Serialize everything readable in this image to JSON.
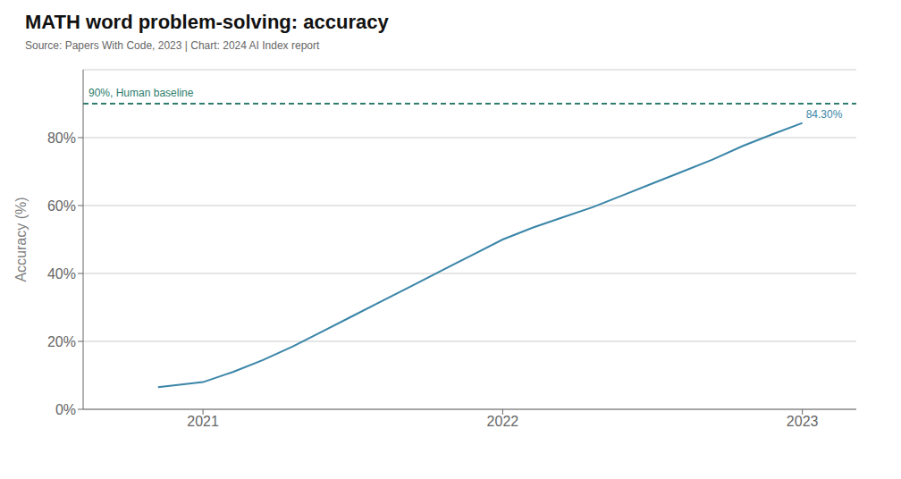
{
  "chart_data": {
    "type": "line",
    "title": "MATH word problem-solving: accuracy",
    "subtitle": "Source: Papers With Code, 2023 | Chart: 2024 AI Index report",
    "ylabel": "Accuracy (%)",
    "x": [
      2020.85,
      2021.0,
      2021.1,
      2021.2,
      2021.3,
      2021.4,
      2021.5,
      2021.6,
      2021.7,
      2021.8,
      2021.9,
      2022.0,
      2022.1,
      2022.2,
      2022.3,
      2022.4,
      2022.5,
      2022.6,
      2022.7,
      2022.8,
      2022.9,
      2023.0
    ],
    "values": [
      6.5,
      8.0,
      11.0,
      14.5,
      18.5,
      23.0,
      27.5,
      32.0,
      36.5,
      41.0,
      45.5,
      50.0,
      53.5,
      56.5,
      59.5,
      63.0,
      66.5,
      70.0,
      73.5,
      77.5,
      81.0,
      84.3
    ],
    "color": "#3a85a8",
    "reference_lines": [
      {
        "value": 90.0,
        "label": "90%, Human baseline",
        "color": "#2e7d6e",
        "line_style": "dashed"
      }
    ],
    "annotations": [
      {
        "text": "84.30%",
        "color": "#3a85a8"
      }
    ],
    "xlim": [
      2020.6,
      2023.18
    ],
    "ylim": [
      0,
      100
    ],
    "xticks": [
      2021,
      2022,
      2023
    ],
    "yticks": [
      {
        "value": 0,
        "label": "0%"
      },
      {
        "value": 20,
        "label": "20%"
      },
      {
        "value": 40,
        "label": "40%"
      },
      {
        "value": 60,
        "label": "60%"
      },
      {
        "value": 80,
        "label": "80%"
      }
    ],
    "grid": true
  }
}
